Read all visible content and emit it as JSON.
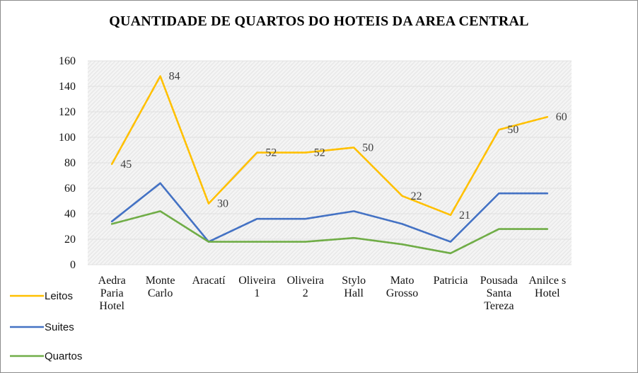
{
  "chart_data": {
    "type": "line",
    "title": "QUANTIDADE  DE QUARTOS DO HOTEIS DA AREA CENTRAL",
    "categories": [
      [
        "Aedra",
        "Paria",
        "Hotel"
      ],
      [
        "Monte",
        "Carlo"
      ],
      [
        "Aracatí"
      ],
      [
        "Oliveira",
        "1"
      ],
      [
        "Oliveira",
        "2"
      ],
      [
        "Stylo",
        "Hall"
      ],
      [
        "Mato",
        "Grosso"
      ],
      [
        "Patricia"
      ],
      [
        "Pousada",
        "Santa",
        "Tereza"
      ],
      [
        "Anilce s",
        "Hotel"
      ]
    ],
    "ylim": [
      0,
      160
    ],
    "yticks": [
      0,
      20,
      40,
      60,
      80,
      100,
      120,
      140,
      160
    ],
    "grid": true,
    "legend_position": "left",
    "series": [
      {
        "name": "Leitos",
        "color": "#FFC000",
        "values": [
          79,
          148,
          48,
          88,
          88,
          92,
          54,
          39,
          106,
          116
        ]
      },
      {
        "name": "Suites",
        "color": "#4472C4",
        "values": [
          34,
          64,
          18,
          36,
          36,
          42,
          32,
          18,
          56,
          56
        ]
      },
      {
        "name": "Quartos",
        "color": "#70AD47",
        "values": [
          32,
          42,
          18,
          18,
          18,
          21,
          16,
          9,
          28,
          28
        ]
      }
    ],
    "data_labels": [
      "45",
      "84",
      "30",
      "52",
      "52",
      "50",
      "22",
      "21",
      "50",
      "60"
    ]
  }
}
